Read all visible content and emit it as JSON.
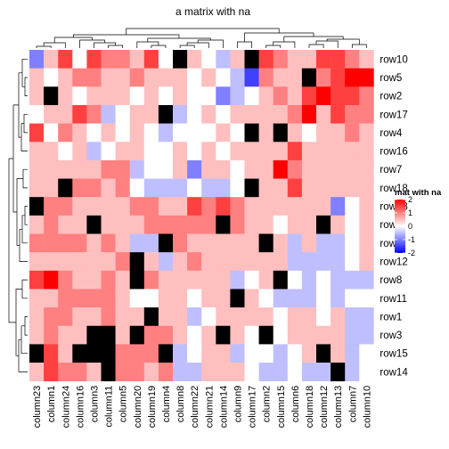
{
  "chart_data": {
    "type": "heatmap",
    "title": "a matrix with na",
    "rows": [
      "row10",
      "row5",
      "row2",
      "row17",
      "row4",
      "row16",
      "row7",
      "row18",
      "row13",
      "row6",
      "row9",
      "row12",
      "row8",
      "row11",
      "row1",
      "row3",
      "row15",
      "row14"
    ],
    "columns": [
      "column23",
      "column1",
      "column24",
      "column16",
      "column3",
      "column11",
      "column5",
      "column20",
      "column19",
      "column4",
      "column8",
      "column22",
      "column21",
      "column14",
      "column9",
      "column17",
      "column2",
      "column15",
      "column6",
      "column18",
      "column12",
      "column13",
      "column7",
      "column10"
    ],
    "values": [
      [
        -1.0,
        0.5,
        1.5,
        0.0,
        1.5,
        1.0,
        1.0,
        0.5,
        1.5,
        0.0,
        null,
        0.5,
        0.0,
        -0.5,
        0.5,
        null,
        1.5,
        1.0,
        0.5,
        0.5,
        1.5,
        1.5,
        1.0,
        0.5
      ],
      [
        0.5,
        0.0,
        0.5,
        1.0,
        1.0,
        0.5,
        0.5,
        1.0,
        0.5,
        0.5,
        0.5,
        0.0,
        0.5,
        0.0,
        -0.5,
        -1.5,
        1.0,
        0.5,
        0.5,
        null,
        1.0,
        1.5,
        2.0,
        2.0
      ],
      [
        0.5,
        null,
        0.5,
        0.0,
        0.5,
        0.5,
        0.5,
        0.0,
        0.5,
        0.0,
        0.5,
        0.0,
        0.0,
        -1.0,
        -0.5,
        0.0,
        0.5,
        1.0,
        0.5,
        1.5,
        2.0,
        1.5,
        1.5,
        1.0
      ],
      [
        0.0,
        0.5,
        0.5,
        1.5,
        1.0,
        -0.5,
        0.0,
        0.5,
        0.5,
        null,
        -0.5,
        0.0,
        0.5,
        0.0,
        0.5,
        0.5,
        0.5,
        0.5,
        1.0,
        2.0,
        0.5,
        1.5,
        1.0,
        1.0
      ],
      [
        1.5,
        0.0,
        1.0,
        0.5,
        0.0,
        0.5,
        0.0,
        0.5,
        0.0,
        -0.5,
        0.0,
        0.0,
        0.0,
        0.5,
        0.0,
        null,
        0.5,
        null,
        0.5,
        0.0,
        0.5,
        0.5,
        1.0,
        0.5
      ],
      [
        0.5,
        0.5,
        0.0,
        0.5,
        -0.5,
        0.0,
        0.5,
        0.5,
        0.0,
        0.0,
        0.5,
        0.0,
        0.5,
        0.0,
        0.5,
        0.5,
        0.5,
        0.5,
        1.5,
        0.5,
        0.5,
        0.5,
        0.5,
        0.5
      ],
      [
        0.5,
        0.5,
        0.5,
        0.5,
        0.5,
        1.0,
        1.0,
        -0.5,
        0.0,
        0.0,
        0.5,
        -1.0,
        0.5,
        0.5,
        0.0,
        0.5,
        0.5,
        2.0,
        1.0,
        0.5,
        0.5,
        0.5,
        0.5,
        0.5
      ],
      [
        0.5,
        0.5,
        null,
        1.0,
        1.0,
        0.5,
        1.0,
        0.0,
        -0.5,
        -0.5,
        -0.5,
        0.0,
        -0.5,
        -0.5,
        0.0,
        null,
        0.5,
        0.5,
        1.5,
        0.5,
        0.5,
        0.5,
        0.5,
        0.5
      ],
      [
        null,
        1.0,
        1.0,
        0.5,
        0.5,
        0.5,
        0.5,
        1.0,
        1.0,
        0.5,
        0.5,
        1.5,
        1.0,
        1.5,
        1.0,
        0.5,
        0.5,
        0.5,
        0.5,
        0.5,
        0.5,
        -1.0,
        0.0,
        0.5
      ],
      [
        0.5,
        1.0,
        0.5,
        0.5,
        null,
        0.5,
        0.5,
        0.5,
        1.0,
        1.0,
        1.0,
        1.0,
        1.0,
        null,
        1.0,
        0.5,
        0.5,
        0.0,
        0.5,
        0.5,
        null,
        0.5,
        0.0,
        0.5
      ],
      [
        1.0,
        1.0,
        1.0,
        1.0,
        0.5,
        1.0,
        0.5,
        -0.5,
        -0.5,
        null,
        1.0,
        0.5,
        0.5,
        0.5,
        0.5,
        0.5,
        null,
        0.5,
        -0.5,
        0.5,
        -0.5,
        -0.5,
        0.0,
        0.5
      ],
      [
        0.5,
        0.5,
        0.5,
        0.5,
        0.5,
        0.5,
        1.0,
        null,
        0.5,
        -0.5,
        0.5,
        1.0,
        0.5,
        0.5,
        0.5,
        0.5,
        0.5,
        0.5,
        -0.5,
        -0.5,
        -0.5,
        -0.5,
        0.0,
        0.5
      ],
      [
        1.5,
        2.0,
        1.0,
        0.5,
        0.5,
        1.0,
        0.5,
        null,
        1.0,
        0.5,
        0.5,
        0.5,
        0.5,
        0.5,
        -0.5,
        0.0,
        0.5,
        null,
        0.0,
        -0.5,
        0.0,
        -0.5,
        -0.5,
        -0.5
      ],
      [
        0.5,
        0.5,
        1.0,
        1.0,
        1.0,
        1.0,
        0.5,
        0.0,
        0.0,
        0.5,
        0.5,
        0.0,
        0.5,
        0.5,
        null,
        0.5,
        0.0,
        -0.5,
        -0.5,
        -0.5,
        0.0,
        -0.5,
        0.0,
        0.0
      ],
      [
        0.5,
        1.0,
        1.0,
        0.5,
        0.5,
        1.0,
        0.5,
        0.5,
        null,
        0.5,
        0.5,
        -0.5,
        0.0,
        0.5,
        0.5,
        0.5,
        0.5,
        0.0,
        0.5,
        0.5,
        0.0,
        0.5,
        -0.5,
        -0.5
      ],
      [
        0.5,
        1.0,
        0.5,
        0.5,
        null,
        null,
        0.5,
        null,
        1.0,
        1.0,
        0.5,
        0.0,
        0.5,
        null,
        0.5,
        0.0,
        null,
        0.0,
        0.5,
        0.5,
        0.5,
        0.5,
        -0.5,
        -0.5
      ],
      [
        null,
        1.5,
        0.5,
        null,
        null,
        null,
        1.0,
        1.0,
        1.0,
        null,
        -0.5,
        0.0,
        0.5,
        0.5,
        -0.5,
        0.0,
        0.0,
        -0.5,
        0.0,
        0.5,
        null,
        0.5,
        -0.5,
        0.0
      ],
      [
        0.5,
        1.5,
        1.0,
        1.0,
        0.5,
        null,
        1.0,
        1.0,
        0.5,
        1.0,
        -0.5,
        -0.5,
        0.5,
        0.5,
        0.5,
        0.0,
        -0.5,
        -0.5,
        0.0,
        -0.5,
        -0.5,
        null,
        -0.5,
        0.0
      ]
    ],
    "na_color": "#000000",
    "colors": {
      "low": "#0000FF",
      "mid": "#FFFFFF",
      "high": "#FF0000"
    },
    "legend": {
      "title": "mat with na",
      "ticks": [
        2,
        1,
        0,
        -1,
        -2
      ],
      "tick_labels": [
        "2",
        "1",
        "0",
        "-1",
        "-2"
      ],
      "placement": "right"
    },
    "row_dendrogram": "left",
    "column_dendrogram": "top",
    "xlabel": "",
    "ylabel": ""
  }
}
